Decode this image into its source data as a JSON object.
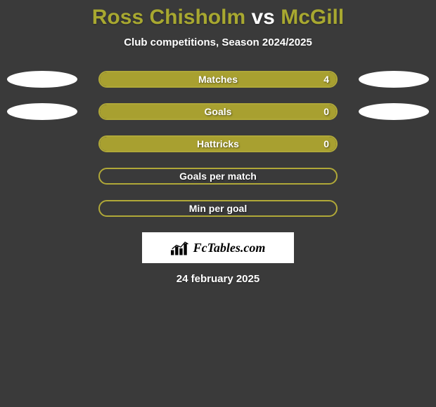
{
  "title": {
    "left": "Ross Chisholm",
    "vs": "vs",
    "right": "McGill",
    "left_color": "#a8a830",
    "vs_color": "#ffffff",
    "right_color": "#a8a830"
  },
  "subtitle": "Club competitions, Season 2024/2025",
  "background_color": "#3a3a3a",
  "bar_fill_color": "#a8a030",
  "bar_border_color": "#b0a838",
  "ellipse_color": "#ffffff",
  "rows": [
    {
      "label": "Matches",
      "value": "4",
      "fill_pct": 100,
      "show_value": true,
      "show_ellipses": true
    },
    {
      "label": "Goals",
      "value": "0",
      "fill_pct": 100,
      "show_value": true,
      "show_ellipses": true
    },
    {
      "label": "Hattricks",
      "value": "0",
      "fill_pct": 100,
      "show_value": true,
      "show_ellipses": false
    },
    {
      "label": "Goals per match",
      "value": "",
      "fill_pct": 0,
      "show_value": false,
      "show_ellipses": false
    },
    {
      "label": "Min per goal",
      "value": "",
      "fill_pct": 0,
      "show_value": false,
      "show_ellipses": false
    }
  ],
  "logo": {
    "text": "FcTables.com",
    "icon": "bars-icon"
  },
  "date": "24 february 2025"
}
